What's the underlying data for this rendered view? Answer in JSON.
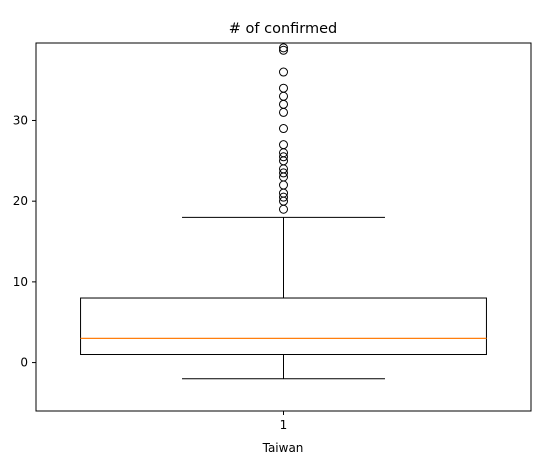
{
  "chart_data": {
    "type": "box",
    "title": "# of confirmed",
    "xlabel": "Taiwan",
    "ylabel": "",
    "categories": [
      "1"
    ],
    "ylim": [
      -6,
      39.6
    ],
    "yticks": [
      0,
      10,
      20,
      30
    ],
    "grid": false,
    "series": [
      {
        "whisker_low": -2,
        "q1": 1,
        "median": 3,
        "q3": 8,
        "whisker_high": 18,
        "outliers": [
          19,
          20,
          20.5,
          21,
          22,
          23,
          23.5,
          24,
          25,
          25.5,
          26,
          27,
          29,
          31,
          32,
          33,
          34,
          36,
          38.7,
          39
        ]
      }
    ],
    "colors": {
      "box": "#000000",
      "median": "#ff7f0e",
      "outlier": "#000000"
    }
  }
}
